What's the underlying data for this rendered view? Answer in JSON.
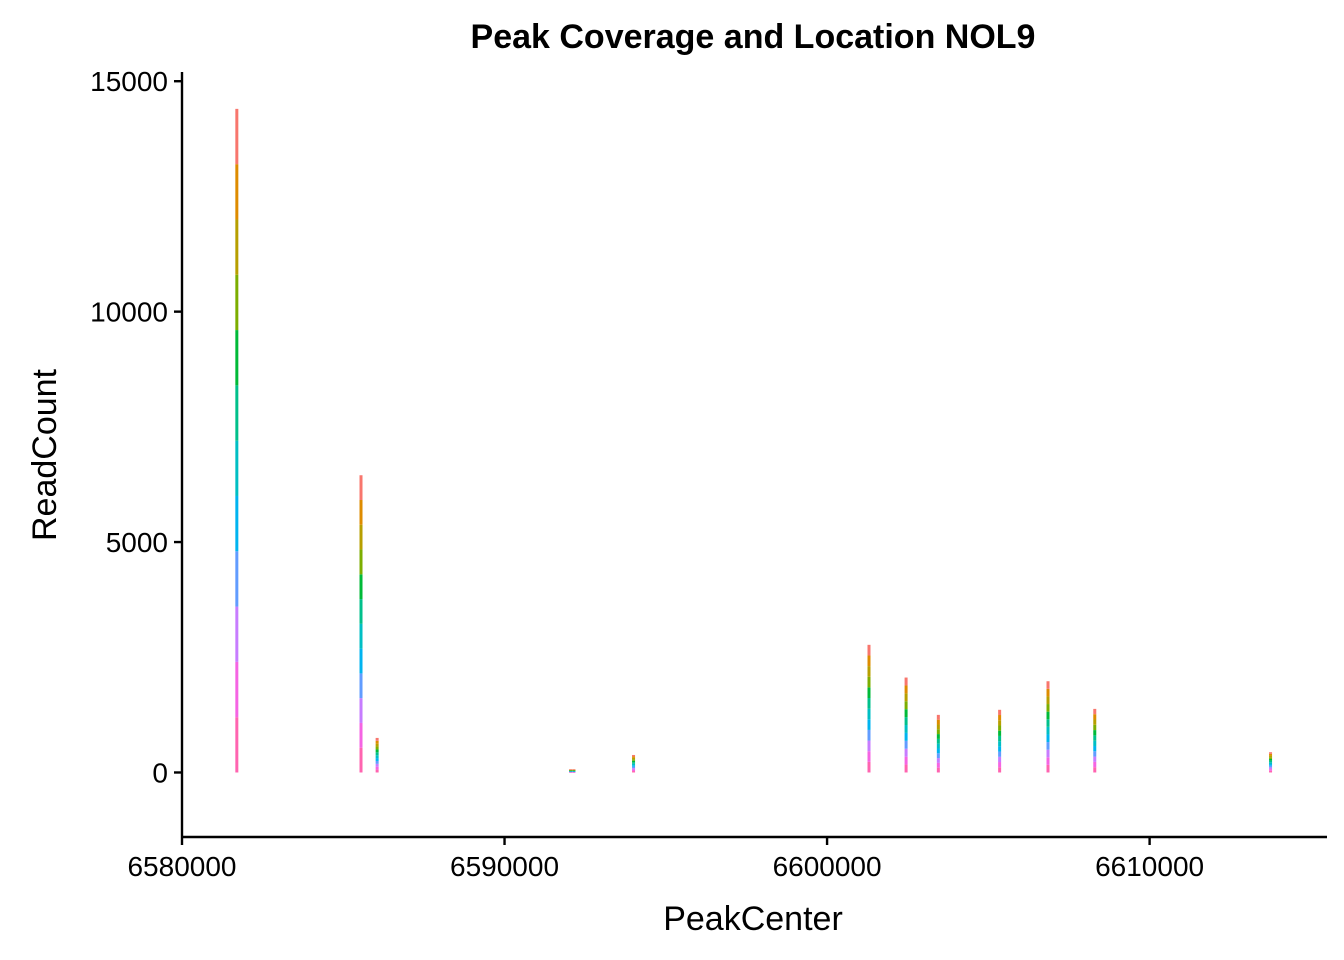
{
  "chart_data": {
    "type": "bar",
    "title": "Peak Coverage and Location NOL9",
    "xlabel": "PeakCenter",
    "ylabel": "ReadCount",
    "xlim": [
      6580000,
      6615500
    ],
    "ylim": [
      -1400,
      15200
    ],
    "x_ticks": [
      6580000,
      6590000,
      6600000,
      6610000
    ],
    "x_tick_labels": [
      "6580000",
      "6590000",
      "6600000",
      "6610000"
    ],
    "y_ticks": [
      0,
      5000,
      10000,
      15000
    ],
    "y_tick_labels": [
      "0",
      "5000",
      "10000",
      "15000"
    ],
    "grid": false,
    "legend": "none",
    "stack_colors": [
      "#F8766D",
      "#DE8C00",
      "#B79F00",
      "#7CAE00",
      "#00BA38",
      "#00C08B",
      "#00BFC4",
      "#00B4F0",
      "#619CFF",
      "#C77CFF",
      "#F564E3",
      "#FF64B0"
    ],
    "peaks": [
      {
        "x": 6581700,
        "value": 14400
      },
      {
        "x": 6585550,
        "value": 6450
      },
      {
        "x": 6586050,
        "value": 750
      },
      {
        "x": 6592050,
        "value": 70
      },
      {
        "x": 6592150,
        "value": 70
      },
      {
        "x": 6594000,
        "value": 380
      },
      {
        "x": 6601300,
        "value": 2770
      },
      {
        "x": 6602450,
        "value": 2060
      },
      {
        "x": 6603450,
        "value": 1250
      },
      {
        "x": 6605350,
        "value": 1360
      },
      {
        "x": 6606850,
        "value": 1980
      },
      {
        "x": 6608300,
        "value": 1380
      },
      {
        "x": 6613750,
        "value": 440
      }
    ]
  }
}
